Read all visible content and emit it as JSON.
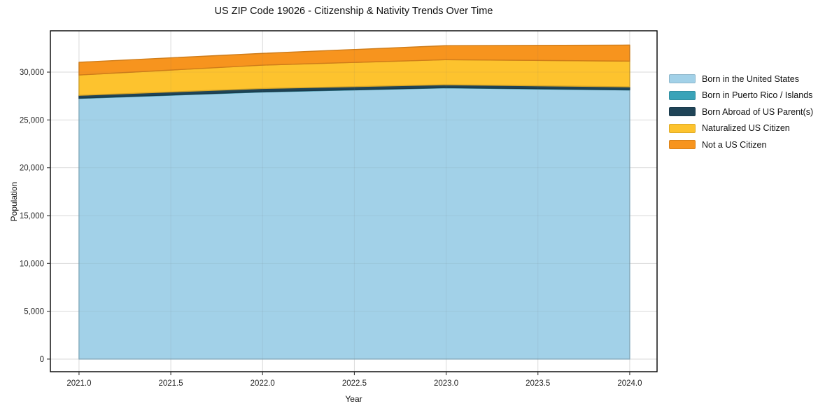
{
  "chart_data": {
    "type": "area",
    "stacked": true,
    "title": "US ZIP Code 19026 - Citizenship & Nativity Trends Over Time",
    "xlabel": "Year",
    "ylabel": "Population",
    "x": [
      2021,
      2022,
      2023,
      2024
    ],
    "series": [
      {
        "name": "Born in the United States",
        "color": "#a2d1e8",
        "values": [
          27250,
          27920,
          28350,
          28130
        ]
      },
      {
        "name": "Born in Puerto Rico / Islands",
        "color": "#3aa3b8",
        "values": [
          30,
          40,
          30,
          30
        ]
      },
      {
        "name": "Born Abroad of US Parent(s)",
        "color": "#1f4457",
        "values": [
          290,
          330,
          300,
          300
        ]
      },
      {
        "name": "Naturalized US Citizen",
        "color": "#fdc32e",
        "values": [
          2130,
          2440,
          2620,
          2690
        ]
      },
      {
        "name": "Not a US Citizen",
        "color": "#f7941e",
        "values": [
          1330,
          1230,
          1470,
          1680
        ]
      }
    ],
    "xlim": [
      2020.844,
      2024.149
    ],
    "ylim": [
      -1320,
      34320
    ],
    "x_ticks": [
      2021.0,
      2021.5,
      2022.0,
      2022.5,
      2023.0,
      2023.5,
      2024.0
    ],
    "x_tick_labels": [
      "2021.0",
      "2021.5",
      "2022.0",
      "2022.5",
      "2023.0",
      "2023.5",
      "2024.0"
    ],
    "y_ticks": [
      0,
      5000,
      10000,
      15000,
      20000,
      25000,
      30000
    ],
    "y_tick_labels": [
      "0",
      "5,000",
      "10,000",
      "15,000",
      "20,000",
      "25,000",
      "30,000"
    ],
    "grid": true,
    "legend_position": "right-outside",
    "grid_color": "#e7e7e7",
    "spine_color": "#000000",
    "tick_color": "#333333",
    "tick_label_color": "#262626"
  }
}
